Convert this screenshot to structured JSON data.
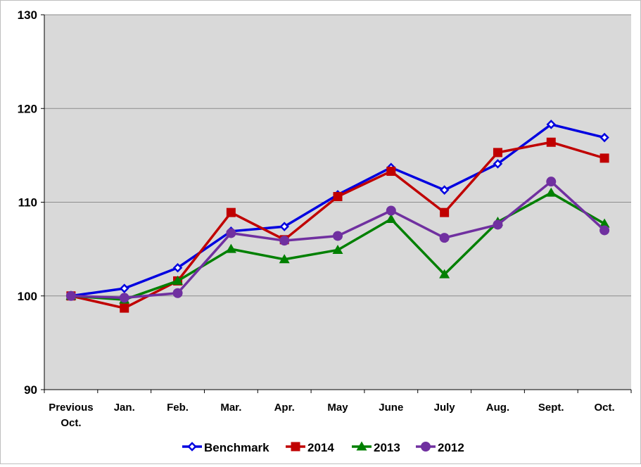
{
  "chart_data": {
    "type": "line",
    "title": "",
    "xlabel": "",
    "ylabel": "",
    "categories": [
      [
        "Previous",
        "Oct."
      ],
      [
        "Jan."
      ],
      [
        "Feb."
      ],
      [
        "Mar."
      ],
      [
        "Apr."
      ],
      [
        "May"
      ],
      [
        "June"
      ],
      [
        "July"
      ],
      [
        "Aug."
      ],
      [
        "Sept."
      ],
      [
        "Oct."
      ]
    ],
    "ylim": [
      90,
      130
    ],
    "yticks": [
      "90",
      "100",
      "110",
      "120",
      "130"
    ],
    "ytick_values": [
      90,
      100,
      110,
      120,
      130
    ],
    "grid": true,
    "legend": "bottom",
    "plot_background": "#d9d9d9",
    "series": [
      {
        "name": "Benchmark",
        "color": "#0000e0",
        "marker": "diamond",
        "values": [
          100.0,
          100.8,
          103.0,
          106.9,
          107.4,
          110.8,
          113.7,
          111.3,
          114.1,
          118.3,
          116.9
        ]
      },
      {
        "name": "2014",
        "color": "#c00000",
        "marker": "square",
        "values": [
          100.0,
          98.7,
          101.6,
          108.9,
          106.0,
          110.6,
          113.3,
          108.9,
          115.3,
          116.4,
          114.7
        ]
      },
      {
        "name": "2013",
        "color": "#008000",
        "marker": "triangle",
        "values": [
          100.0,
          99.6,
          101.6,
          105.0,
          103.9,
          104.9,
          108.2,
          102.3,
          107.9,
          111.0,
          107.7
        ]
      },
      {
        "name": "2012",
        "color": "#7030a0",
        "marker": "circle",
        "values": [
          100.0,
          99.8,
          100.3,
          106.7,
          105.9,
          106.4,
          109.1,
          106.2,
          107.6,
          112.2,
          107.0
        ]
      }
    ]
  }
}
